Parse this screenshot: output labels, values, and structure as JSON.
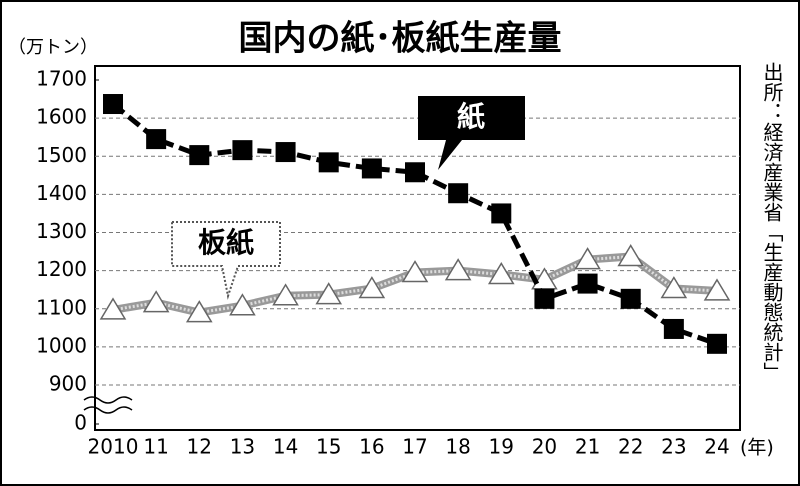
{
  "chart_data": {
    "type": "line",
    "title": "国内の紙･板紙生産量",
    "y_label": "（万トン）",
    "x_label": "(年)",
    "source": "出所：経済産業省「生産動態統計」",
    "categories": [
      "2010",
      "11",
      "12",
      "13",
      "14",
      "15",
      "16",
      "17",
      "18",
      "19",
      "20",
      "21",
      "22",
      "23",
      "24"
    ],
    "series": [
      {
        "name": "紙",
        "color": "#000000",
        "marker": "square",
        "values": [
          1637,
          1545,
          1503,
          1516,
          1511,
          1484,
          1468,
          1458,
          1403,
          1350,
          1126,
          1166,
          1126,
          1047,
          1008
        ]
      },
      {
        "name": "板紙",
        "color": "#999999",
        "marker": "triangle",
        "values": [
          1097,
          1116,
          1090,
          1108,
          1134,
          1137,
          1153,
          1195,
          1200,
          1190,
          1176,
          1229,
          1237,
          1153,
          1147
        ]
      }
    ],
    "ylim": [
      0,
      1700
    ],
    "y_break": [
      0,
      900
    ],
    "yticks": [
      0,
      900,
      1000,
      1100,
      1200,
      1300,
      1400,
      1500,
      1600,
      1700
    ],
    "grid": true
  }
}
